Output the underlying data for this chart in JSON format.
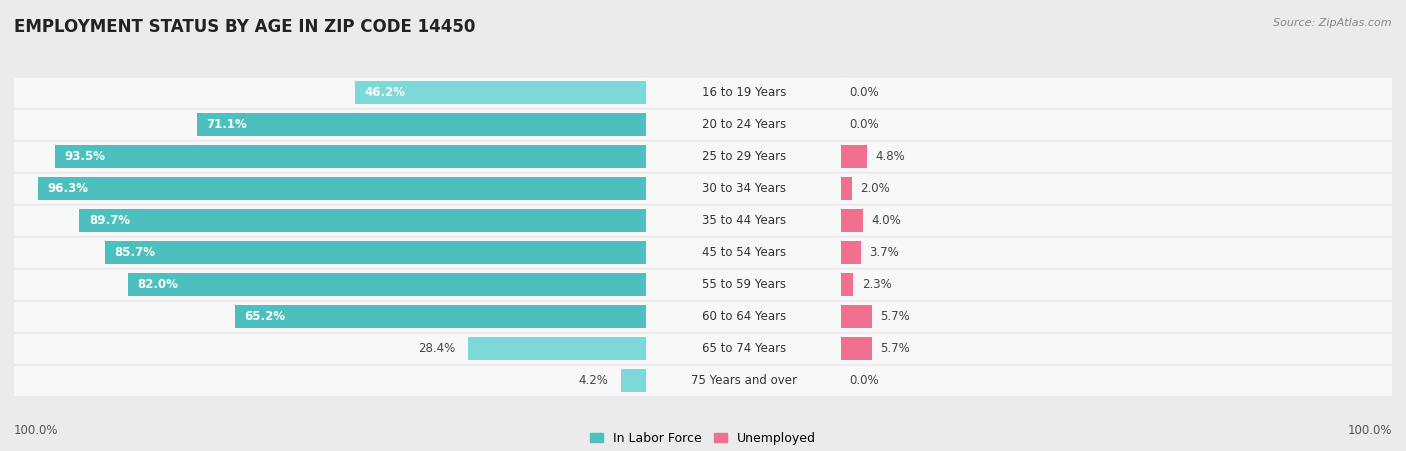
{
  "title": "EMPLOYMENT STATUS BY AGE IN ZIP CODE 14450",
  "source": "Source: ZipAtlas.com",
  "categories": [
    "16 to 19 Years",
    "20 to 24 Years",
    "25 to 29 Years",
    "30 to 34 Years",
    "35 to 44 Years",
    "45 to 54 Years",
    "55 to 59 Years",
    "60 to 64 Years",
    "65 to 74 Years",
    "75 Years and over"
  ],
  "labor_force": [
    46.2,
    71.1,
    93.5,
    96.3,
    89.7,
    85.7,
    82.0,
    65.2,
    28.4,
    4.2
  ],
  "unemployed": [
    0.0,
    0.0,
    4.8,
    2.0,
    4.0,
    3.7,
    2.3,
    5.7,
    5.7,
    0.0
  ],
  "teal_color": "#4DBFBF",
  "teal_light_color": "#7DD8D8",
  "pink_color": "#F07090",
  "pink_light_color": "#F5AABD",
  "bg_color": "#EBEBEB",
  "row_bg_color": "#F8F8F8",
  "title_fontsize": 12,
  "label_fontsize": 8.5,
  "cat_fontsize": 8.5,
  "axis_max": 100.0
}
